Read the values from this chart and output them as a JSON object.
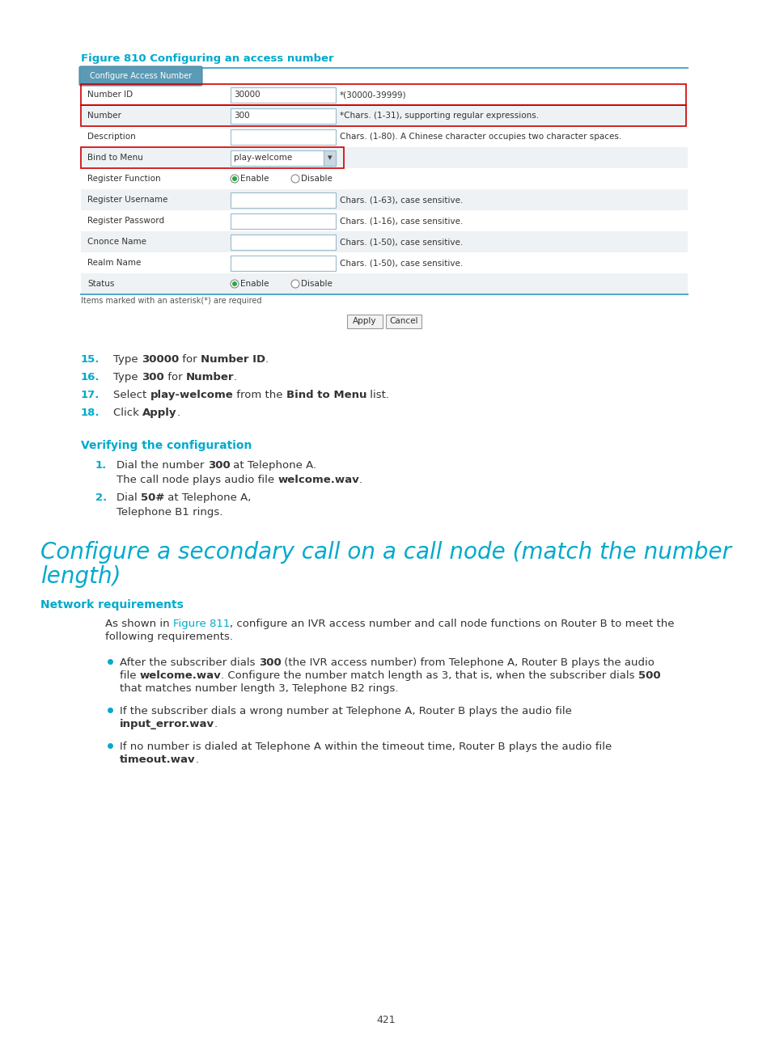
{
  "bg_color": "#ffffff",
  "cyan_color": "#00aacc",
  "red_border_color": "#cc0000",
  "light_blue_border": "#aaddee",
  "tab_bg": "#5b9ab5",
  "tab_text": "#ffffff",
  "table_line_color": "#55aacc",
  "table_row_alt": "#eef2f4",
  "table_row_white": "#ffffff",
  "input_border": "#99bbcc",
  "input_bg": "#ffffff",
  "text_color": "#333333",
  "figure_caption": "Figure 810 Configuring an access number",
  "tab_label": "Configure Access Number",
  "rows": [
    {
      "label": "Number ID",
      "value": "30000",
      "hint": "*(30000-39999)",
      "red_border": true,
      "alt": false
    },
    {
      "label": "Number",
      "value": "300",
      "hint": "*Chars. (1-31), supporting regular expressions.",
      "red_border": true,
      "alt": true
    },
    {
      "label": "Description",
      "value": "",
      "hint": "Chars. (1-80). A Chinese character occupies two character spaces.",
      "red_border": false,
      "alt": false
    },
    {
      "label": "Bind to Menu",
      "value": "play-welcome",
      "hint": "",
      "red_border": true,
      "alt": true,
      "dropdown": true
    },
    {
      "label": "Register Function",
      "value": "",
      "hint": "",
      "red_border": false,
      "alt": false,
      "radio": [
        "Enable",
        "Disable"
      ]
    },
    {
      "label": "Register Username",
      "value": "",
      "hint": "Chars. (1-63), case sensitive.",
      "red_border": false,
      "alt": true
    },
    {
      "label": "Register Password",
      "value": "",
      "hint": "Chars. (1-16), case sensitive.",
      "red_border": false,
      "alt": false
    },
    {
      "label": "Cnonce Name",
      "value": "",
      "hint": "Chars. (1-50), case sensitive.",
      "red_border": false,
      "alt": true
    },
    {
      "label": "Realm Name",
      "value": "",
      "hint": "Chars. (1-50), case sensitive.",
      "red_border": false,
      "alt": false
    },
    {
      "label": "Status",
      "value": "",
      "hint": "",
      "red_border": false,
      "alt": true,
      "radio": [
        "Enable",
        "Disable"
      ]
    }
  ],
  "footer_note": "Items marked with an asterisk(*) are required",
  "page_number": "421"
}
